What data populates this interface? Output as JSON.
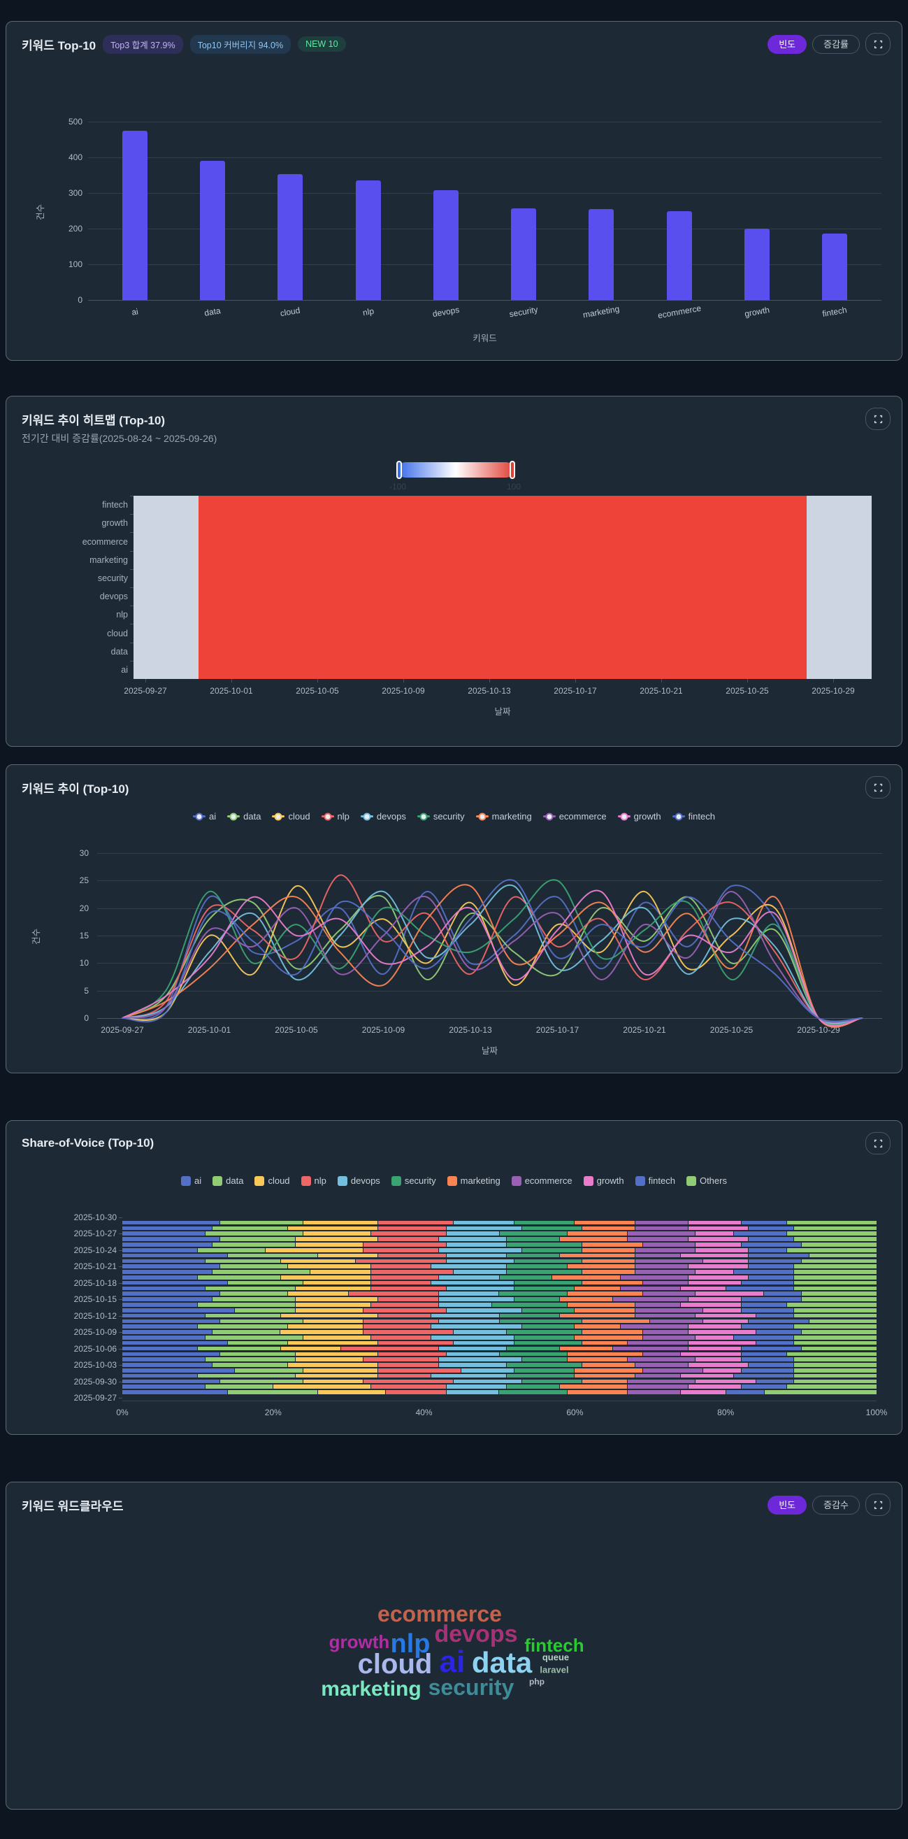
{
  "panels": {
    "top10": {
      "title": "키워드 Top-10",
      "badges": [
        "Top3 합계 37.9%",
        "Top10 커버리지 94.0%",
        "NEW 10"
      ],
      "btn_freq": "빈도",
      "btn_change": "증감률"
    },
    "heatmap": {
      "title": "키워드 추이 히트맵 (Top-10)",
      "subtitle": "전기간 대비 증감률(2025-08-24 ~ 2025-09-26)"
    },
    "trend": {
      "title": "키워드 추이 (Top-10)"
    },
    "sov": {
      "title": "Share-of-Voice (Top-10)"
    },
    "wordcloud": {
      "title": "키워드 워드클라우드",
      "btn_freq": "빈도",
      "btn_change": "증감수"
    }
  },
  "colors": {
    "accent_purple": "#6d28d9",
    "bar": "#584fee",
    "palette": [
      "#5470c6",
      "#91cc75",
      "#fac858",
      "#ee6666",
      "#73c0de",
      "#3ba272",
      "#fc8452",
      "#9a60b4",
      "#ea7ccc",
      "#5470c6"
    ],
    "others": "#91cc75",
    "heat_red": "#ee4338",
    "heat_na": "#ccd5e1"
  },
  "chart_data": [
    {
      "id": "top10_bar",
      "type": "bar",
      "title": "키워드 Top-10",
      "categories": [
        "ai",
        "data",
        "cloud",
        "nlp",
        "devops",
        "security",
        "marketing",
        "ecommerce",
        "growth",
        "fintech"
      ],
      "values": [
        475,
        390,
        352,
        335,
        307,
        257,
        255,
        250,
        200,
        187
      ],
      "xlabel": "키워드",
      "ylabel": "건수",
      "ylim": [
        0,
        500
      ],
      "yticks": [
        0,
        100,
        200,
        300,
        400,
        500
      ],
      "grid": true
    },
    {
      "id": "trend_heatmap",
      "type": "heatmap",
      "title": "키워드 추이 히트맵 (Top-10)",
      "subtitle": "전기간 대비 증감률(2025-08-24 ~ 2025-09-26)",
      "rows": [
        "fintech",
        "growth",
        "ecommerce",
        "marketing",
        "security",
        "devops",
        "nlp",
        "cloud",
        "data",
        "ai"
      ],
      "x_start": "2025-09-27",
      "x_end": "2025-10-30",
      "columns": 34,
      "xticks": [
        "2025-09-27",
        "2025-10-01",
        "2025-10-05",
        "2025-10-09",
        "2025-10-13",
        "2025-10-17",
        "2025-10-21",
        "2025-10-25",
        "2025-10-29"
      ],
      "xlabel": "날짜",
      "bands": [
        {
          "label": "no-data",
          "columns": 3,
          "color": "#ccd5e1"
        },
        {
          "label": "increase",
          "columns": 28,
          "color": "#ee4338"
        },
        {
          "label": "no-data",
          "columns": 3,
          "color": "#ccd5e1"
        }
      ],
      "colorbar": {
        "min": -100,
        "max": 100,
        "min_label": "-100",
        "max_label": "100",
        "gradient": [
          "#3a6ce8",
          "#ffffff",
          "#e0423a"
        ]
      }
    },
    {
      "id": "trend_lines",
      "type": "line",
      "title": "키워드 추이 (Top-10)",
      "xlabel": "날짜",
      "ylabel": "건수",
      "ylim": [
        0,
        30
      ],
      "yticks": [
        0,
        5,
        10,
        15,
        20,
        25,
        30
      ],
      "grid": true,
      "legend_position": "top",
      "x": [
        "2025-09-27",
        "2025-09-29",
        "2025-10-01",
        "2025-10-03",
        "2025-10-05",
        "2025-10-07",
        "2025-10-09",
        "2025-10-11",
        "2025-10-13",
        "2025-10-15",
        "2025-10-17",
        "2025-10-19",
        "2025-10-21",
        "2025-10-23",
        "2025-10-25",
        "2025-10-27",
        "2025-10-29",
        "2025-10-31"
      ],
      "xticks": [
        "2025-09-27",
        "2025-10-01",
        "2025-10-05",
        "2025-10-09",
        "2025-10-13",
        "2025-10-17",
        "2025-10-21",
        "2025-10-25",
        "2025-10-29"
      ],
      "series": [
        {
          "name": "ai",
          "color": "#5470c6",
          "values": [
            0,
            2,
            22,
            12,
            14,
            20,
            8,
            23,
            10,
            15,
            22,
            9,
            21,
            13,
            24,
            18,
            0,
            0
          ]
        },
        {
          "name": "data",
          "color": "#91cc75",
          "values": [
            0,
            4,
            18,
            21,
            9,
            16,
            22,
            7,
            19,
            12,
            8,
            20,
            14,
            22,
            10,
            16,
            0,
            0
          ]
        },
        {
          "name": "cloud",
          "color": "#fac858",
          "values": [
            0,
            1,
            15,
            8,
            24,
            13,
            18,
            10,
            21,
            6,
            17,
            12,
            23,
            9,
            15,
            20,
            0,
            0
          ]
        },
        {
          "name": "nlp",
          "color": "#ee6666",
          "values": [
            0,
            3,
            20,
            16,
            11,
            26,
            14,
            19,
            8,
            22,
            13,
            18,
            7,
            16,
            21,
            12,
            0,
            0
          ]
        },
        {
          "name": "devops",
          "color": "#73c0de",
          "values": [
            0,
            2,
            12,
            19,
            7,
            15,
            23,
            11,
            17,
            24,
            9,
            14,
            20,
            8,
            18,
            13,
            0,
            0
          ]
        },
        {
          "name": "security",
          "color": "#3ba272",
          "values": [
            0,
            5,
            23,
            10,
            17,
            9,
            20,
            15,
            12,
            18,
            25,
            11,
            16,
            21,
            7,
            17,
            0,
            0
          ]
        },
        {
          "name": "marketing",
          "color": "#fc8452",
          "values": [
            0,
            3,
            9,
            17,
            22,
            12,
            6,
            18,
            24,
            10,
            15,
            21,
            12,
            19,
            9,
            22,
            0,
            0
          ]
        },
        {
          "name": "ecommerce",
          "color": "#9a60b4",
          "values": [
            0,
            2,
            16,
            13,
            20,
            8,
            15,
            22,
            9,
            14,
            19,
            7,
            17,
            11,
            23,
            10,
            0,
            0
          ]
        },
        {
          "name": "growth",
          "color": "#ea7ccc",
          "values": [
            0,
            4,
            11,
            22,
            15,
            18,
            10,
            13,
            20,
            7,
            16,
            23,
            8,
            15,
            12,
            19,
            0,
            0
          ]
        },
        {
          "name": "fintech",
          "color": "#5470c6",
          "values": [
            0,
            1,
            19,
            14,
            8,
            21,
            16,
            9,
            18,
            25,
            11,
            17,
            13,
            22,
            14,
            8,
            0,
            0
          ]
        }
      ]
    },
    {
      "id": "sov",
      "type": "bar_stacked_h",
      "title": "Share-of-Voice (Top-10)",
      "legend": [
        "ai",
        "data",
        "cloud",
        "nlp",
        "devops",
        "security",
        "marketing",
        "ecommerce",
        "growth",
        "fintech",
        "Others"
      ],
      "colors": [
        "#5470c6",
        "#91cc75",
        "#fac858",
        "#ee6666",
        "#73c0de",
        "#3ba272",
        "#fc8452",
        "#9a60b4",
        "#ea7ccc",
        "#5470c6",
        "#91cc75"
      ],
      "xticks": [
        "0%",
        "20%",
        "40%",
        "60%",
        "80%",
        "100%"
      ],
      "ylabels": [
        "2025-10-30",
        "2025-10-27",
        "2025-10-24",
        "2025-10-21",
        "2025-10-18",
        "2025-10-15",
        "2025-10-12",
        "2025-10-09",
        "2025-10-06",
        "2025-10-03",
        "2025-09-30",
        "2025-09-27"
      ],
      "rows": [
        [
          "2025-10-30",
          []
        ],
        [
          "2025-10-29",
          [
            13,
            11,
            10,
            10,
            8,
            8,
            8,
            7,
            7,
            6,
            12
          ]
        ],
        [
          "2025-10-28",
          [
            12,
            10,
            12,
            9,
            10,
            8,
            7,
            7,
            8,
            6,
            11
          ]
        ],
        [
          "2025-10-27",
          [
            11,
            13,
            9,
            10,
            7,
            9,
            8,
            9,
            5,
            7,
            12
          ]
        ],
        [
          "2025-10-26",
          [
            13,
            10,
            11,
            8,
            9,
            7,
            9,
            8,
            8,
            6,
            11
          ]
        ],
        [
          "2025-10-25",
          [
            12,
            11,
            9,
            11,
            8,
            10,
            8,
            7,
            6,
            8,
            10
          ]
        ],
        [
          "2025-10-24",
          [
            10,
            9,
            13,
            10,
            11,
            8,
            7,
            8,
            7,
            5,
            12
          ]
        ],
        [
          "2025-10-23",
          [
            14,
            12,
            8,
            9,
            8,
            7,
            10,
            6,
            9,
            8,
            9
          ]
        ],
        [
          "2025-10-22",
          [
            11,
            10,
            10,
            12,
            9,
            9,
            7,
            9,
            6,
            7,
            10
          ]
        ],
        [
          "2025-10-21",
          [
            13,
            9,
            11,
            8,
            10,
            8,
            9,
            7,
            8,
            6,
            11
          ]
        ],
        [
          "2025-10-20",
          [
            12,
            13,
            8,
            11,
            7,
            10,
            7,
            8,
            5,
            8,
            11
          ]
        ],
        [
          "2025-10-19",
          [
            10,
            11,
            12,
            9,
            8,
            7,
            9,
            9,
            8,
            6,
            11
          ]
        ],
        [
          "2025-10-18",
          [
            14,
            10,
            9,
            8,
            11,
            9,
            8,
            6,
            7,
            7,
            11
          ]
        ],
        [
          "2025-10-17",
          [
            11,
            12,
            10,
            10,
            9,
            8,
            6,
            8,
            6,
            9,
            11
          ]
        ],
        [
          "2025-10-16",
          [
            13,
            9,
            8,
            12,
            8,
            9,
            10,
            7,
            9,
            5,
            10
          ]
        ],
        [
          "2025-10-15",
          [
            12,
            11,
            11,
            8,
            10,
            6,
            7,
            10,
            7,
            8,
            10
          ]
        ],
        [
          "2025-10-14",
          [
            10,
            13,
            10,
            9,
            7,
            10,
            9,
            6,
            8,
            6,
            12
          ]
        ],
        [
          "2025-10-13",
          [
            15,
            8,
            9,
            11,
            10,
            7,
            8,
            9,
            5,
            7,
            11
          ]
        ],
        [
          "2025-10-12",
          [
            11,
            10,
            13,
            7,
            9,
            8,
            10,
            8,
            8,
            5,
            11
          ]
        ],
        [
          "2025-10-11",
          [
            13,
            11,
            8,
            10,
            8,
            11,
            9,
            7,
            6,
            8,
            9
          ]
        ],
        [
          "2025-10-10",
          [
            10,
            12,
            10,
            9,
            12,
            7,
            6,
            9,
            7,
            7,
            11
          ]
        ],
        [
          "2025-10-09",
          [
            12,
            9,
            11,
            12,
            7,
            10,
            8,
            6,
            9,
            6,
            10
          ]
        ],
        [
          "2025-10-08",
          [
            11,
            13,
            9,
            8,
            11,
            8,
            9,
            7,
            5,
            8,
            11
          ]
        ],
        [
          "2025-10-07",
          [
            14,
            8,
            12,
            10,
            8,
            9,
            6,
            8,
            9,
            5,
            11
          ]
        ],
        [
          "2025-10-06",
          [
            10,
            11,
            8,
            13,
            9,
            7,
            7,
            10,
            7,
            8,
            10
          ]
        ],
        [
          "2025-10-05",
          [
            13,
            10,
            11,
            9,
            7,
            9,
            10,
            5,
            8,
            6,
            12
          ]
        ],
        [
          "2025-10-04",
          [
            11,
            12,
            9,
            10,
            11,
            6,
            8,
            9,
            6,
            7,
            11
          ]
        ],
        [
          "2025-10-03",
          [
            12,
            10,
            12,
            8,
            9,
            10,
            7,
            7,
            8,
            6,
            11
          ]
        ],
        [
          "2025-10-02",
          [
            15,
            9,
            10,
            11,
            7,
            8,
            9,
            8,
            5,
            7,
            11
          ]
        ],
        [
          "2025-10-01",
          [
            10,
            13,
            11,
            7,
            10,
            9,
            8,
            6,
            7,
            8,
            11
          ]
        ],
        [
          "2025-09-30",
          [
            13,
            11,
            8,
            12,
            9,
            8,
            6,
            9,
            8,
            5,
            11
          ]
        ],
        [
          "2025-09-29",
          [
            11,
            9,
            13,
            10,
            8,
            7,
            9,
            8,
            7,
            6,
            12
          ]
        ],
        [
          "2025-09-28",
          [
            14,
            12,
            9,
            8,
            7,
            9,
            8,
            7,
            6,
            5,
            15
          ]
        ],
        [
          "2025-09-27",
          []
        ]
      ]
    },
    {
      "id": "wordcloud",
      "type": "wordcloud",
      "title": "키워드 워드클라우드",
      "words": [
        {
          "text": "ecommerce",
          "size": 32,
          "color": "#c2634e",
          "x": 620,
          "y": 188
        },
        {
          "text": "devops",
          "size": 34,
          "color": "#a93277",
          "x": 672,
          "y": 217
        },
        {
          "text": "growth",
          "size": 26,
          "color": "#b32ba5",
          "x": 505,
          "y": 228
        },
        {
          "text": "nlp",
          "size": 38,
          "color": "#2779e6",
          "x": 578,
          "y": 231
        },
        {
          "text": "fintech",
          "size": 26,
          "color": "#27cc2e",
          "x": 784,
          "y": 233
        },
        {
          "text": "queue",
          "size": 13,
          "color": "#b7d3c6",
          "x": 786,
          "y": 250
        },
        {
          "text": "cloud",
          "size": 40,
          "color": "#aab8ec",
          "x": 556,
          "y": 260
        },
        {
          "text": "ai",
          "size": 44,
          "color": "#2b24e3",
          "x": 638,
          "y": 257
        },
        {
          "text": "data",
          "size": 42,
          "color": "#8ed2f2",
          "x": 709,
          "y": 258
        },
        {
          "text": "laravel",
          "size": 13,
          "color": "#9cbfad",
          "x": 784,
          "y": 268
        },
        {
          "text": "php",
          "size": 12,
          "color": "#b6bac4",
          "x": 759,
          "y": 285
        },
        {
          "text": "marketing",
          "size": 30,
          "color": "#7ce8c1",
          "x": 522,
          "y": 296
        },
        {
          "text": "security",
          "size": 32,
          "color": "#3d8c98",
          "x": 665,
          "y": 293
        }
      ]
    }
  ]
}
